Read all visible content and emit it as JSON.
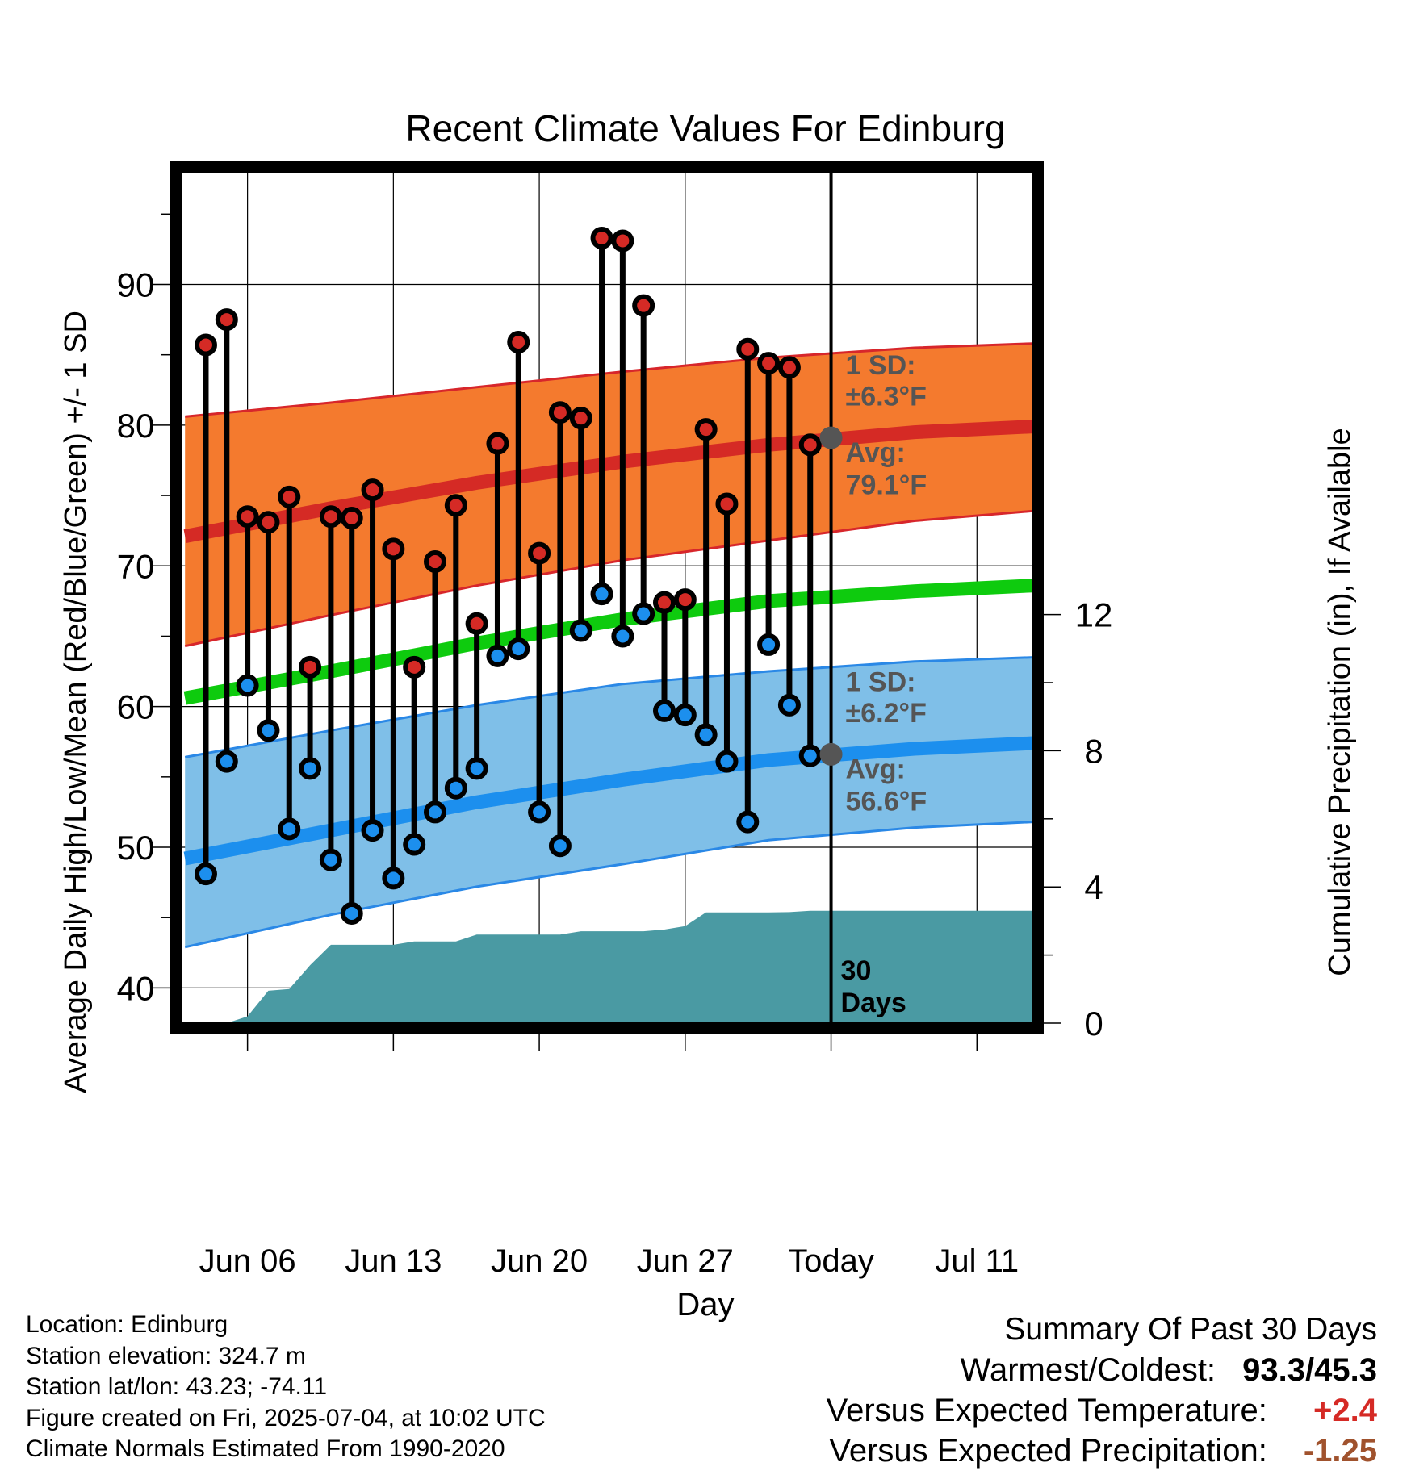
{
  "chart_data": {
    "type": "line",
    "title": "Recent Climate Values For Edinburg",
    "xlabel": "Day",
    "ylabel": "Average Daily High/Low/Mean (Red/Blue/Green) +/- 1 SD",
    "y2label": "Cumulative Precipitation (in), If Available",
    "ylim": [
      37.5,
      98
    ],
    "y_ticks": [
      40,
      50,
      60,
      70,
      80,
      90
    ],
    "y2lim": [
      0,
      25
    ],
    "y2_ticks": [
      0,
      4,
      8,
      12
    ],
    "x_tick_labels": [
      "Jun 06",
      "Jun 13",
      "Jun 20",
      "Jun 27",
      "Today",
      "Jul 11"
    ],
    "x_tick_days": [
      6,
      13,
      20,
      27,
      34,
      41
    ],
    "xlim": [
      2.8,
      43.7
    ],
    "today_day": 34,
    "high_normal": {
      "days": [
        3,
        10,
        17,
        24,
        31,
        38,
        43.7
      ],
      "mean": [
        72.1,
        74.1,
        75.9,
        77.4,
        78.6,
        79.5,
        79.9
      ],
      "upper": [
        80.6,
        81.6,
        82.7,
        83.8,
        84.8,
        85.5,
        85.8
      ],
      "lower": [
        64.3,
        66.5,
        68.6,
        70.4,
        71.8,
        73.2,
        73.9
      ]
    },
    "mean_normal": {
      "days": [
        3,
        10,
        17,
        24,
        31,
        38,
        43.7
      ],
      "values": [
        60.6,
        62.5,
        64.5,
        66.2,
        67.5,
        68.2,
        68.6
      ]
    },
    "low_normal": {
      "days": [
        3,
        10,
        17,
        24,
        31,
        38,
        43.7
      ],
      "mean": [
        49.2,
        51.2,
        53.2,
        54.8,
        56.2,
        57.0,
        57.4
      ],
      "upper": [
        56.4,
        58.3,
        60.1,
        61.6,
        62.5,
        63.2,
        63.5
      ],
      "lower": [
        42.9,
        45.2,
        47.2,
        48.8,
        50.5,
        51.4,
        51.8
      ]
    },
    "observed": {
      "days": [
        4,
        5,
        6,
        7,
        8,
        9,
        10,
        11,
        12,
        13,
        14,
        15,
        16,
        17,
        18,
        19,
        20,
        21,
        22,
        23,
        24,
        25,
        26,
        27,
        28,
        29,
        30,
        31,
        32,
        33
      ],
      "high": [
        85.7,
        87.5,
        73.5,
        73.1,
        74.9,
        62.8,
        73.5,
        73.4,
        75.4,
        71.2,
        62.8,
        70.3,
        74.3,
        65.9,
        78.7,
        85.9,
        70.9,
        80.9,
        80.5,
        93.3,
        93.1,
        88.5,
        67.4,
        67.6,
        79.7,
        74.4,
        85.4,
        84.4,
        84.1,
        78.6
      ],
      "low": [
        48.1,
        56.1,
        61.5,
        58.3,
        51.3,
        55.6,
        49.1,
        45.3,
        51.2,
        47.8,
        50.2,
        52.5,
        54.2,
        55.6,
        63.6,
        64.1,
        52.5,
        50.1,
        65.4,
        68.0,
        65.0,
        66.6,
        59.7,
        59.4,
        58.0,
        56.1,
        51.8,
        64.4,
        60.1,
        56.5
      ]
    },
    "precip_cumulative": {
      "days": [
        5,
        6,
        7,
        8,
        9,
        10,
        11,
        12,
        13,
        14,
        15,
        16,
        17,
        18,
        19,
        20,
        21,
        22,
        23,
        24,
        25,
        26,
        27,
        28,
        29,
        30,
        31,
        32,
        33,
        34,
        43.7
      ],
      "values": [
        0,
        0.2,
        0.95,
        1.0,
        1.7,
        2.3,
        2.3,
        2.3,
        2.3,
        2.4,
        2.4,
        2.4,
        2.6,
        2.6,
        2.6,
        2.6,
        2.6,
        2.7,
        2.7,
        2.7,
        2.7,
        2.75,
        2.85,
        3.25,
        3.25,
        3.25,
        3.25,
        3.26,
        3.3,
        3.3,
        3.3
      ]
    },
    "annotations": {
      "high_sd": [
        "1 SD:",
        "±6.3°F"
      ],
      "high_avg": [
        "Avg:",
        "79.1°F"
      ],
      "low_sd": [
        "1 SD:",
        "±6.2°F"
      ],
      "low_avg": [
        "Avg:",
        "56.6°F"
      ],
      "today_high_avg": 79.1,
      "today_low_avg": 56.6,
      "precip_label": [
        "30",
        "Days"
      ]
    },
    "colors": {
      "high_band": "#f47a2e",
      "high_line": "#d52a25",
      "high_band_edge": "#d7262b",
      "low_band": "#7fbfe8",
      "low_line": "#1c8fee",
      "low_band_edge": "#2a88e6",
      "mean_line": "#0ecb0e",
      "precip": "#4a9aa3",
      "label_gray": "#555555",
      "today_marker": "#555555",
      "high_dot": "#d52a25",
      "low_dot": "#1c8fee"
    },
    "grid": true
  },
  "footer": {
    "location": "Location: Edinburg",
    "elevation": "Station elevation: 324.7 m",
    "latlon": "Station lat/lon: 43.23; -74.11",
    "created": "Figure created on Fri, 2025-07-04, at 10:02 UTC",
    "normals": "Climate Normals Estimated From 1990-2020"
  },
  "summary": {
    "title": "Summary Of Past 30 Days",
    "warmest_label": "Warmest/Coldest:",
    "warmest_value": "93.3/45.3",
    "temp_label": "Versus Expected Temperature:",
    "temp_value": "+2.4",
    "temp_color": "#d52a25",
    "precip_label": "Versus Expected Precipitation:",
    "precip_value": "-1.25",
    "precip_color": "#a0522d"
  }
}
